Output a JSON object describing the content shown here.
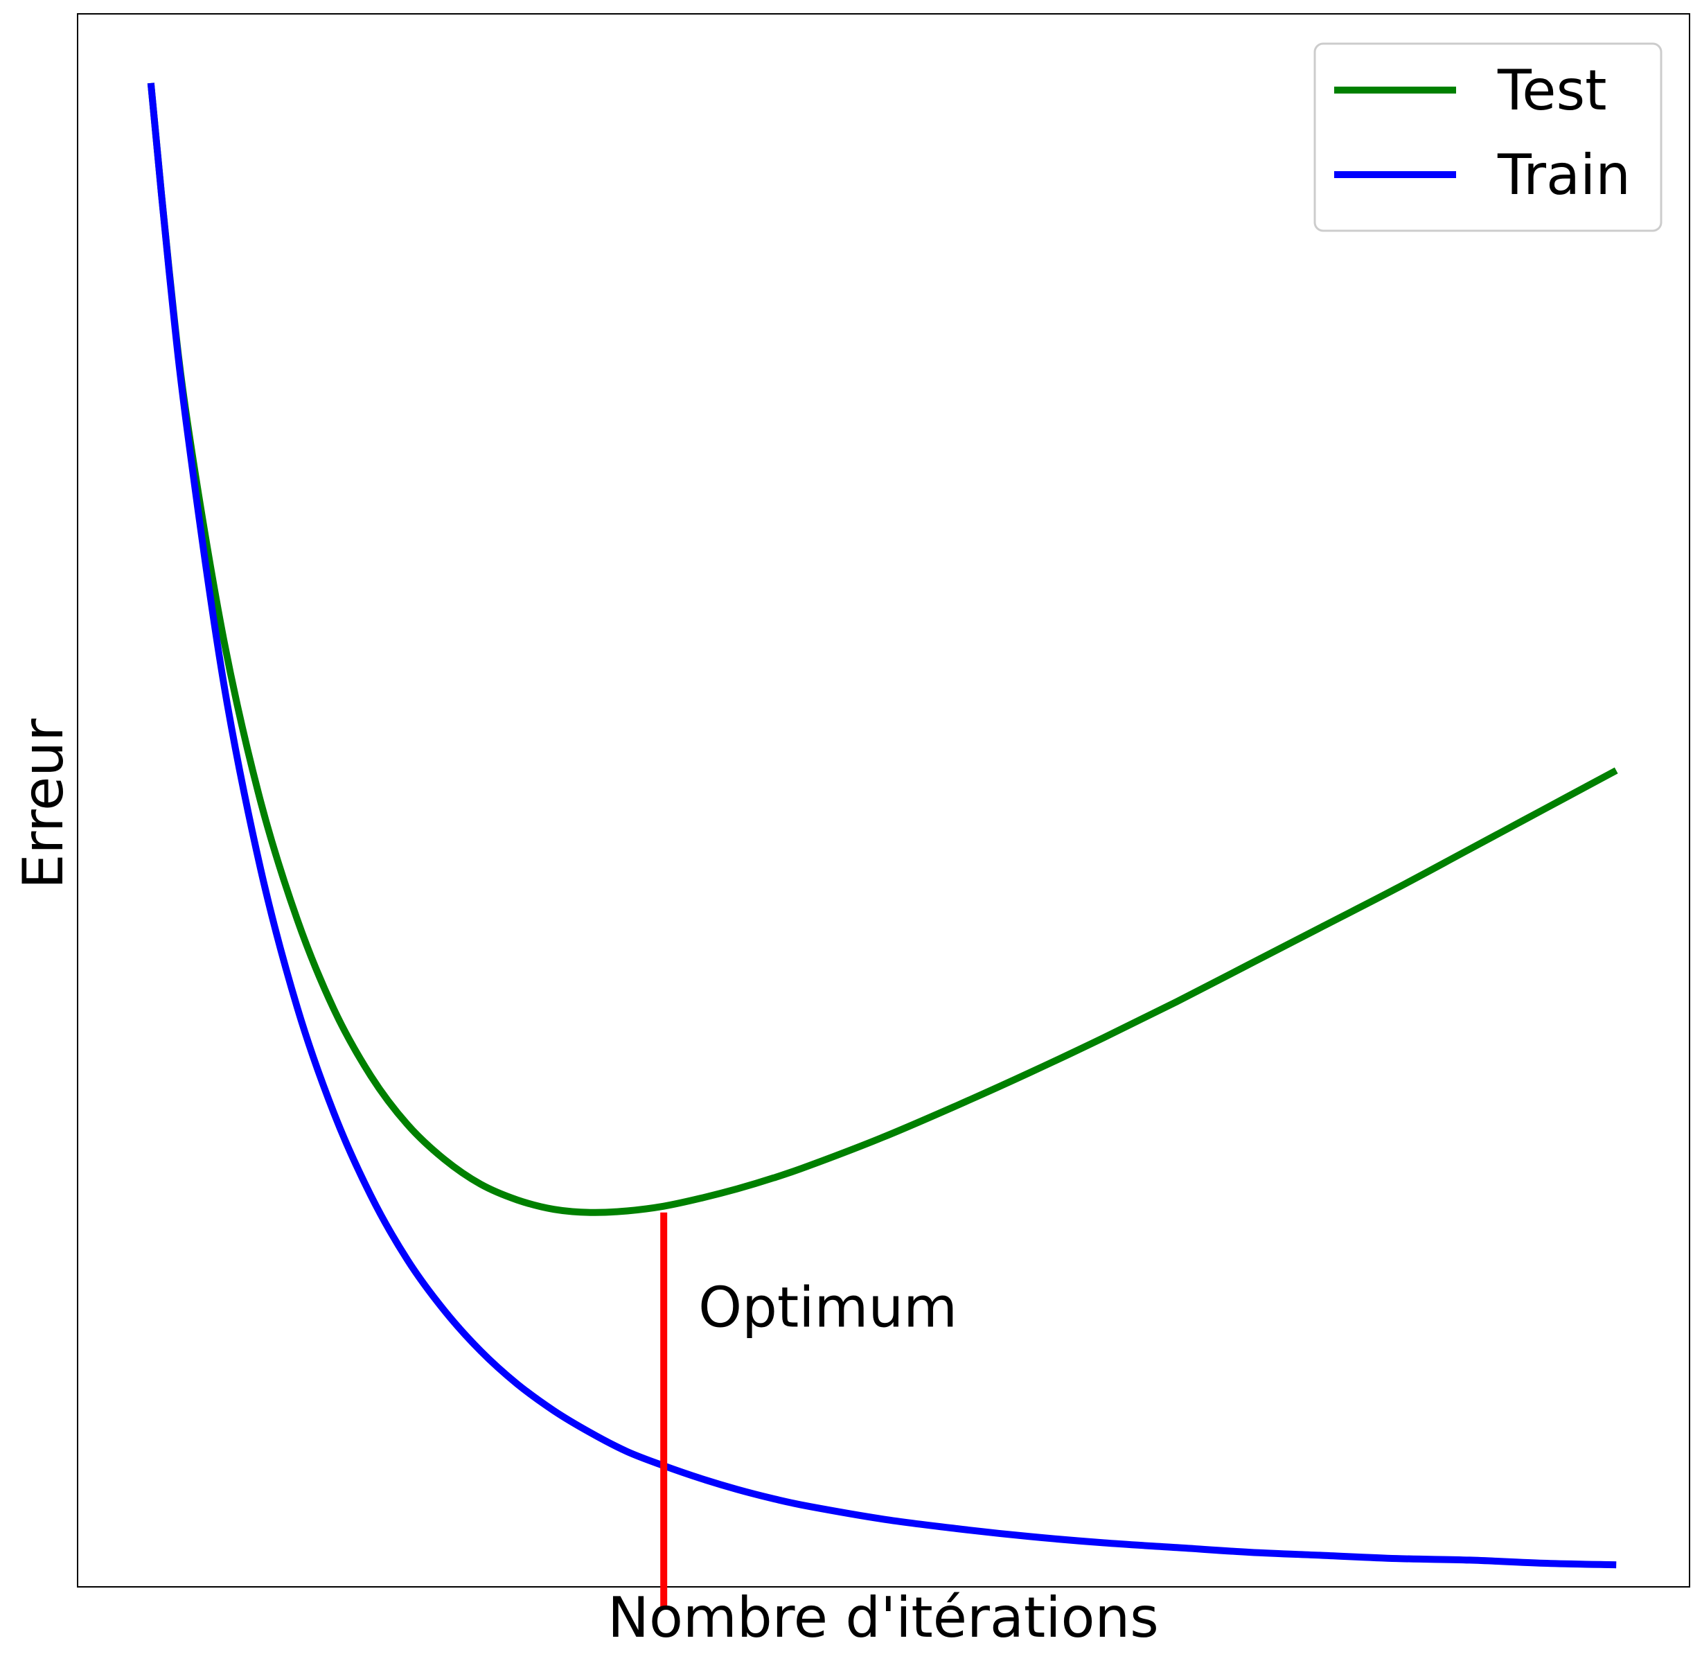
{
  "chart_data": {
    "type": "line",
    "xlabel": "Nombre d'itérations",
    "ylabel": "Erreur",
    "xlim": [
      0,
      1.1
    ],
    "ylim": [
      0.06,
      1.06
    ],
    "grid": false,
    "ticks": false,
    "legend_position": "top-right",
    "series": [
      {
        "name": "Test",
        "color": "#008000",
        "x": [
          0.05,
          0.0625,
          0.075,
          0.1,
          0.125,
          0.15,
          0.175,
          0.2,
          0.225,
          0.25,
          0.275,
          0.3,
          0.325,
          0.35,
          0.375,
          0.4,
          0.425,
          0.45,
          0.475,
          0.5,
          0.55,
          0.6,
          0.65,
          0.7,
          0.75,
          0.8,
          0.85,
          0.9,
          0.95,
          1.0,
          1.05
        ],
        "y": [
          1.016,
          0.897,
          0.8,
          0.661,
          0.559,
          0.484,
          0.427,
          0.385,
          0.354,
          0.332,
          0.316,
          0.306,
          0.3,
          0.298,
          0.299,
          0.302,
          0.307,
          0.313,
          0.32,
          0.328,
          0.346,
          0.366,
          0.387,
          0.409,
          0.432,
          0.456,
          0.48,
          0.504,
          0.529,
          0.554,
          0.579
        ]
      },
      {
        "name": "Train",
        "color": "#0000ff",
        "x": [
          0.05,
          0.0625,
          0.075,
          0.1,
          0.125,
          0.15,
          0.175,
          0.2,
          0.225,
          0.25,
          0.275,
          0.3,
          0.325,
          0.35,
          0.375,
          0.4,
          0.425,
          0.45,
          0.475,
          0.5,
          0.55,
          0.6,
          0.65,
          0.7,
          0.75,
          0.8,
          0.85,
          0.9,
          0.95,
          1.0,
          1.05
        ],
        "y": [
          1.016,
          0.896,
          0.794,
          0.633,
          0.516,
          0.428,
          0.361,
          0.309,
          0.268,
          0.236,
          0.21,
          0.189,
          0.172,
          0.158,
          0.146,
          0.137,
          0.129,
          0.122,
          0.116,
          0.111,
          0.103,
          0.097,
          0.092,
          0.088,
          0.085,
          0.082,
          0.08,
          0.078,
          0.077,
          0.075,
          0.074
        ]
      }
    ],
    "vline": {
      "x": 0.4,
      "y_start": 0.047,
      "y_end": 0.298,
      "color": "#ff0000",
      "label": "Optimum"
    }
  }
}
